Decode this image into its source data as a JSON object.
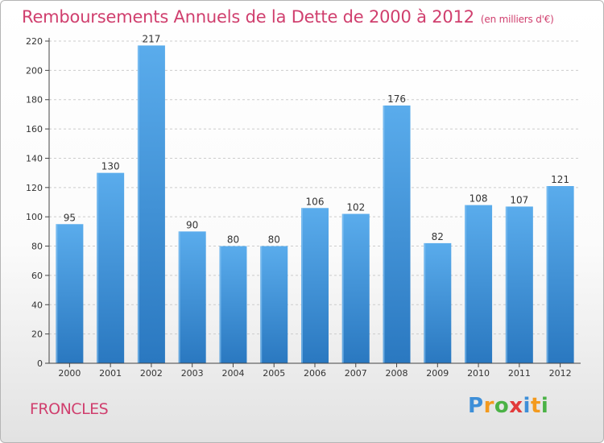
{
  "header": {
    "title": "Remboursements Annuels de la Dette de 2000 à 2012",
    "subtitle": "(en milliers d'€)"
  },
  "footer": {
    "commune": "FRONCLES",
    "logo_text": "Proxiti",
    "logo_letters": [
      {
        "ch": "P",
        "color": "#3e8fd8"
      },
      {
        "ch": "r",
        "color": "#f39a1e"
      },
      {
        "ch": "o",
        "color": "#4bb246"
      },
      {
        "ch": "x",
        "color": "#e23a3a"
      },
      {
        "ch": "i",
        "color": "#3e8fd8"
      },
      {
        "ch": "t",
        "color": "#f39a1e"
      },
      {
        "ch": "i",
        "color": "#4bb246"
      }
    ]
  },
  "colors": {
    "bar_top": "#5aacec",
    "bar_bottom": "#2a78c0",
    "title": "#d03f6e",
    "grid": "#cccccc",
    "axis": "#444444"
  },
  "chart_data": {
    "type": "bar",
    "categories": [
      "2000",
      "2001",
      "2002",
      "2003",
      "2004",
      "2005",
      "2006",
      "2007",
      "2008",
      "2009",
      "2010",
      "2011",
      "2012"
    ],
    "values": [
      95,
      130,
      217,
      90,
      80,
      80,
      106,
      102,
      176,
      82,
      108,
      107,
      121
    ],
    "ylim": [
      0,
      220
    ],
    "yticks": [
      0,
      20,
      40,
      60,
      80,
      100,
      120,
      140,
      160,
      180,
      200,
      220
    ],
    "grid": true,
    "xlabel": "",
    "ylabel": ""
  }
}
